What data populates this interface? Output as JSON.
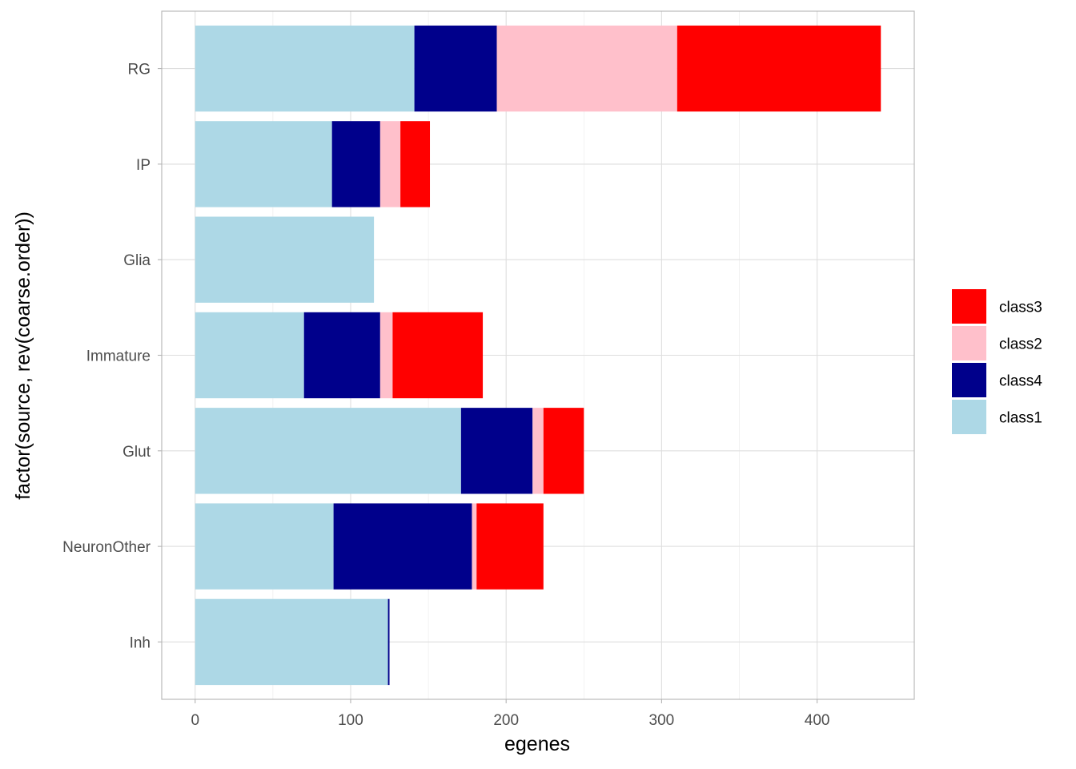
{
  "chart_data": {
    "type": "bar",
    "orientation": "horizontal",
    "stacked": true,
    "categories": [
      "RG",
      "IP",
      "Glia",
      "Immature",
      "Glut",
      "NeuronOther",
      "Inh"
    ],
    "series": [
      {
        "name": "class1",
        "color": "#ADD8E6",
        "values": [
          141,
          88,
          115,
          70,
          171,
          89,
          124
        ]
      },
      {
        "name": "class4",
        "color": "#00008B",
        "values": [
          53,
          31,
          0,
          49,
          46,
          89,
          1
        ]
      },
      {
        "name": "class2",
        "color": "#FFC0CB",
        "values": [
          116,
          13,
          0,
          8,
          7,
          3,
          0
        ]
      },
      {
        "name": "class3",
        "color": "#FF0000",
        "values": [
          131,
          19,
          0,
          58,
          26,
          43,
          0
        ]
      }
    ],
    "legend_order": [
      "class3",
      "class2",
      "class4",
      "class1"
    ],
    "legend_position": "right",
    "xlabel": "egenes",
    "ylabel": "factor(source, rev(coarse.order))",
    "xlim": [
      -21.5,
      462.5
    ],
    "xticks": [
      0,
      100,
      200,
      300,
      400
    ],
    "grid": true
  }
}
